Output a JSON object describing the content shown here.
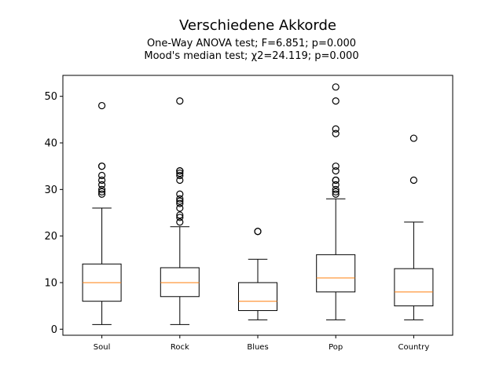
{
  "chart_data": {
    "type": "boxplot",
    "title": "Verschiedene Akkorde",
    "subtitle_lines": [
      "One-Way ANOVA test; F=6.851; p=0.000",
      "Mood's median test; χ2=24.119; p=0.000"
    ],
    "xlabel": "",
    "ylabel": "",
    "ylim": [
      -1.3,
      54.5
    ],
    "yticks": [
      0,
      10,
      20,
      30,
      40,
      50
    ],
    "grid": false,
    "colors": {
      "box": "#000000",
      "median": "#ff7f0e",
      "flier": "#000000"
    },
    "categories": [
      "Soul",
      "Rock",
      "Blues",
      "Pop",
      "Country"
    ],
    "boxes": [
      {
        "label": "Soul",
        "whisker_low": 1,
        "q1": 6,
        "median": 10,
        "q3": 14,
        "whisker_high": 26,
        "fliers": [
          29,
          29.5,
          30,
          31,
          32,
          33,
          35,
          35,
          48
        ]
      },
      {
        "label": "Rock",
        "whisker_low": 1,
        "q1": 7,
        "median": 10,
        "q3": 13.2,
        "whisker_high": 22,
        "fliers": [
          23,
          24,
          24.5,
          26,
          27,
          27.5,
          28,
          29,
          32,
          33,
          33.5,
          34,
          34,
          49
        ]
      },
      {
        "label": "Blues",
        "whisker_low": 2,
        "q1": 4,
        "median": 6,
        "q3": 10,
        "whisker_high": 15,
        "fliers": [
          21,
          21
        ]
      },
      {
        "label": "Pop",
        "whisker_low": 2,
        "q1": 8,
        "median": 11,
        "q3": 16,
        "whisker_high": 28,
        "fliers": [
          29,
          29.5,
          30,
          31,
          32,
          32,
          34,
          35,
          42,
          43,
          49,
          52
        ]
      },
      {
        "label": "Country",
        "whisker_low": 2,
        "q1": 5,
        "median": 8,
        "q3": 13,
        "whisker_high": 23,
        "fliers": [
          32,
          41
        ]
      }
    ]
  }
}
